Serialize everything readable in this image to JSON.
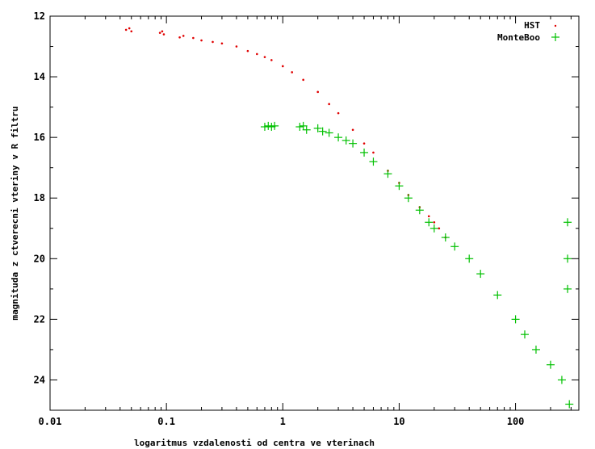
{
  "chart_data": {
    "type": "scatter",
    "title": "",
    "xlabel": "logaritmus vzdalenosti od centra ve vterinach",
    "ylabel": "magnituda z ctverecni vteriny v R filtru",
    "x_scale": "log",
    "xlim": [
      0.01,
      350
    ],
    "ylim": [
      25,
      12
    ],
    "y_inverted": true,
    "x_ticks": [
      {
        "value": 0.01,
        "label": "0.01"
      },
      {
        "value": 0.1,
        "label": "0.1"
      },
      {
        "value": 1,
        "label": "1"
      },
      {
        "value": 10,
        "label": "10"
      },
      {
        "value": 100,
        "label": "100"
      }
    ],
    "y_ticks": [
      {
        "value": 12,
        "label": "12"
      },
      {
        "value": 14,
        "label": "14"
      },
      {
        "value": 16,
        "label": "16"
      },
      {
        "value": 18,
        "label": "18"
      },
      {
        "value": 20,
        "label": "20"
      },
      {
        "value": 22,
        "label": "22"
      },
      {
        "value": 24,
        "label": "24"
      }
    ],
    "grid": false,
    "legend": "top-right",
    "series": [
      {
        "name": "HST",
        "marker": "dot",
        "color": "#e00000",
        "points": [
          [
            0.045,
            12.45
          ],
          [
            0.048,
            12.4
          ],
          [
            0.05,
            12.5
          ],
          [
            0.088,
            12.55
          ],
          [
            0.092,
            12.5
          ],
          [
            0.095,
            12.6
          ],
          [
            0.13,
            12.7
          ],
          [
            0.14,
            12.65
          ],
          [
            0.17,
            12.72
          ],
          [
            0.2,
            12.8
          ],
          [
            0.25,
            12.85
          ],
          [
            0.3,
            12.9
          ],
          [
            0.4,
            13.0
          ],
          [
            0.5,
            13.15
          ],
          [
            0.6,
            13.25
          ],
          [
            0.7,
            13.35
          ],
          [
            0.8,
            13.45
          ],
          [
            1.0,
            13.65
          ],
          [
            1.2,
            13.85
          ],
          [
            1.5,
            14.1
          ],
          [
            2.0,
            14.5
          ],
          [
            2.5,
            14.9
          ],
          [
            3.0,
            15.2
          ],
          [
            4.0,
            15.75
          ],
          [
            5.0,
            16.2
          ],
          [
            6.0,
            16.5
          ],
          [
            8.0,
            17.1
          ],
          [
            10.0,
            17.5
          ],
          [
            12.0,
            17.9
          ],
          [
            15.0,
            18.3
          ],
          [
            18.0,
            18.6
          ],
          [
            20.0,
            18.8
          ],
          [
            22.0,
            19.0
          ],
          [
            25.0,
            19.3
          ]
        ]
      },
      {
        "name": "MonteBoo",
        "marker": "plus",
        "color": "#00c000",
        "points": [
          [
            0.7,
            15.65
          ],
          [
            0.75,
            15.62
          ],
          [
            0.8,
            15.65
          ],
          [
            0.85,
            15.62
          ],
          [
            1.4,
            15.65
          ],
          [
            1.5,
            15.62
          ],
          [
            1.6,
            15.75
          ],
          [
            2.0,
            15.7
          ],
          [
            2.2,
            15.8
          ],
          [
            2.5,
            15.85
          ],
          [
            3.0,
            16.0
          ],
          [
            3.5,
            16.1
          ],
          [
            4.0,
            16.2
          ],
          [
            5.0,
            16.5
          ],
          [
            6.0,
            16.8
          ],
          [
            8.0,
            17.2
          ],
          [
            10.0,
            17.6
          ],
          [
            12.0,
            18.0
          ],
          [
            15.0,
            18.4
          ],
          [
            18.0,
            18.8
          ],
          [
            20.0,
            19.0
          ],
          [
            25.0,
            19.3
          ],
          [
            30.0,
            19.6
          ],
          [
            40.0,
            20.0
          ],
          [
            50.0,
            20.5
          ],
          [
            70.0,
            21.2
          ],
          [
            100.0,
            22.0
          ],
          [
            120.0,
            22.5
          ],
          [
            150.0,
            23.0
          ],
          [
            200.0,
            23.5
          ],
          [
            250.0,
            24.0
          ],
          [
            280.0,
            18.8
          ],
          [
            280.0,
            20.0
          ],
          [
            280.0,
            21.0
          ],
          [
            290.0,
            24.8
          ]
        ]
      }
    ]
  }
}
